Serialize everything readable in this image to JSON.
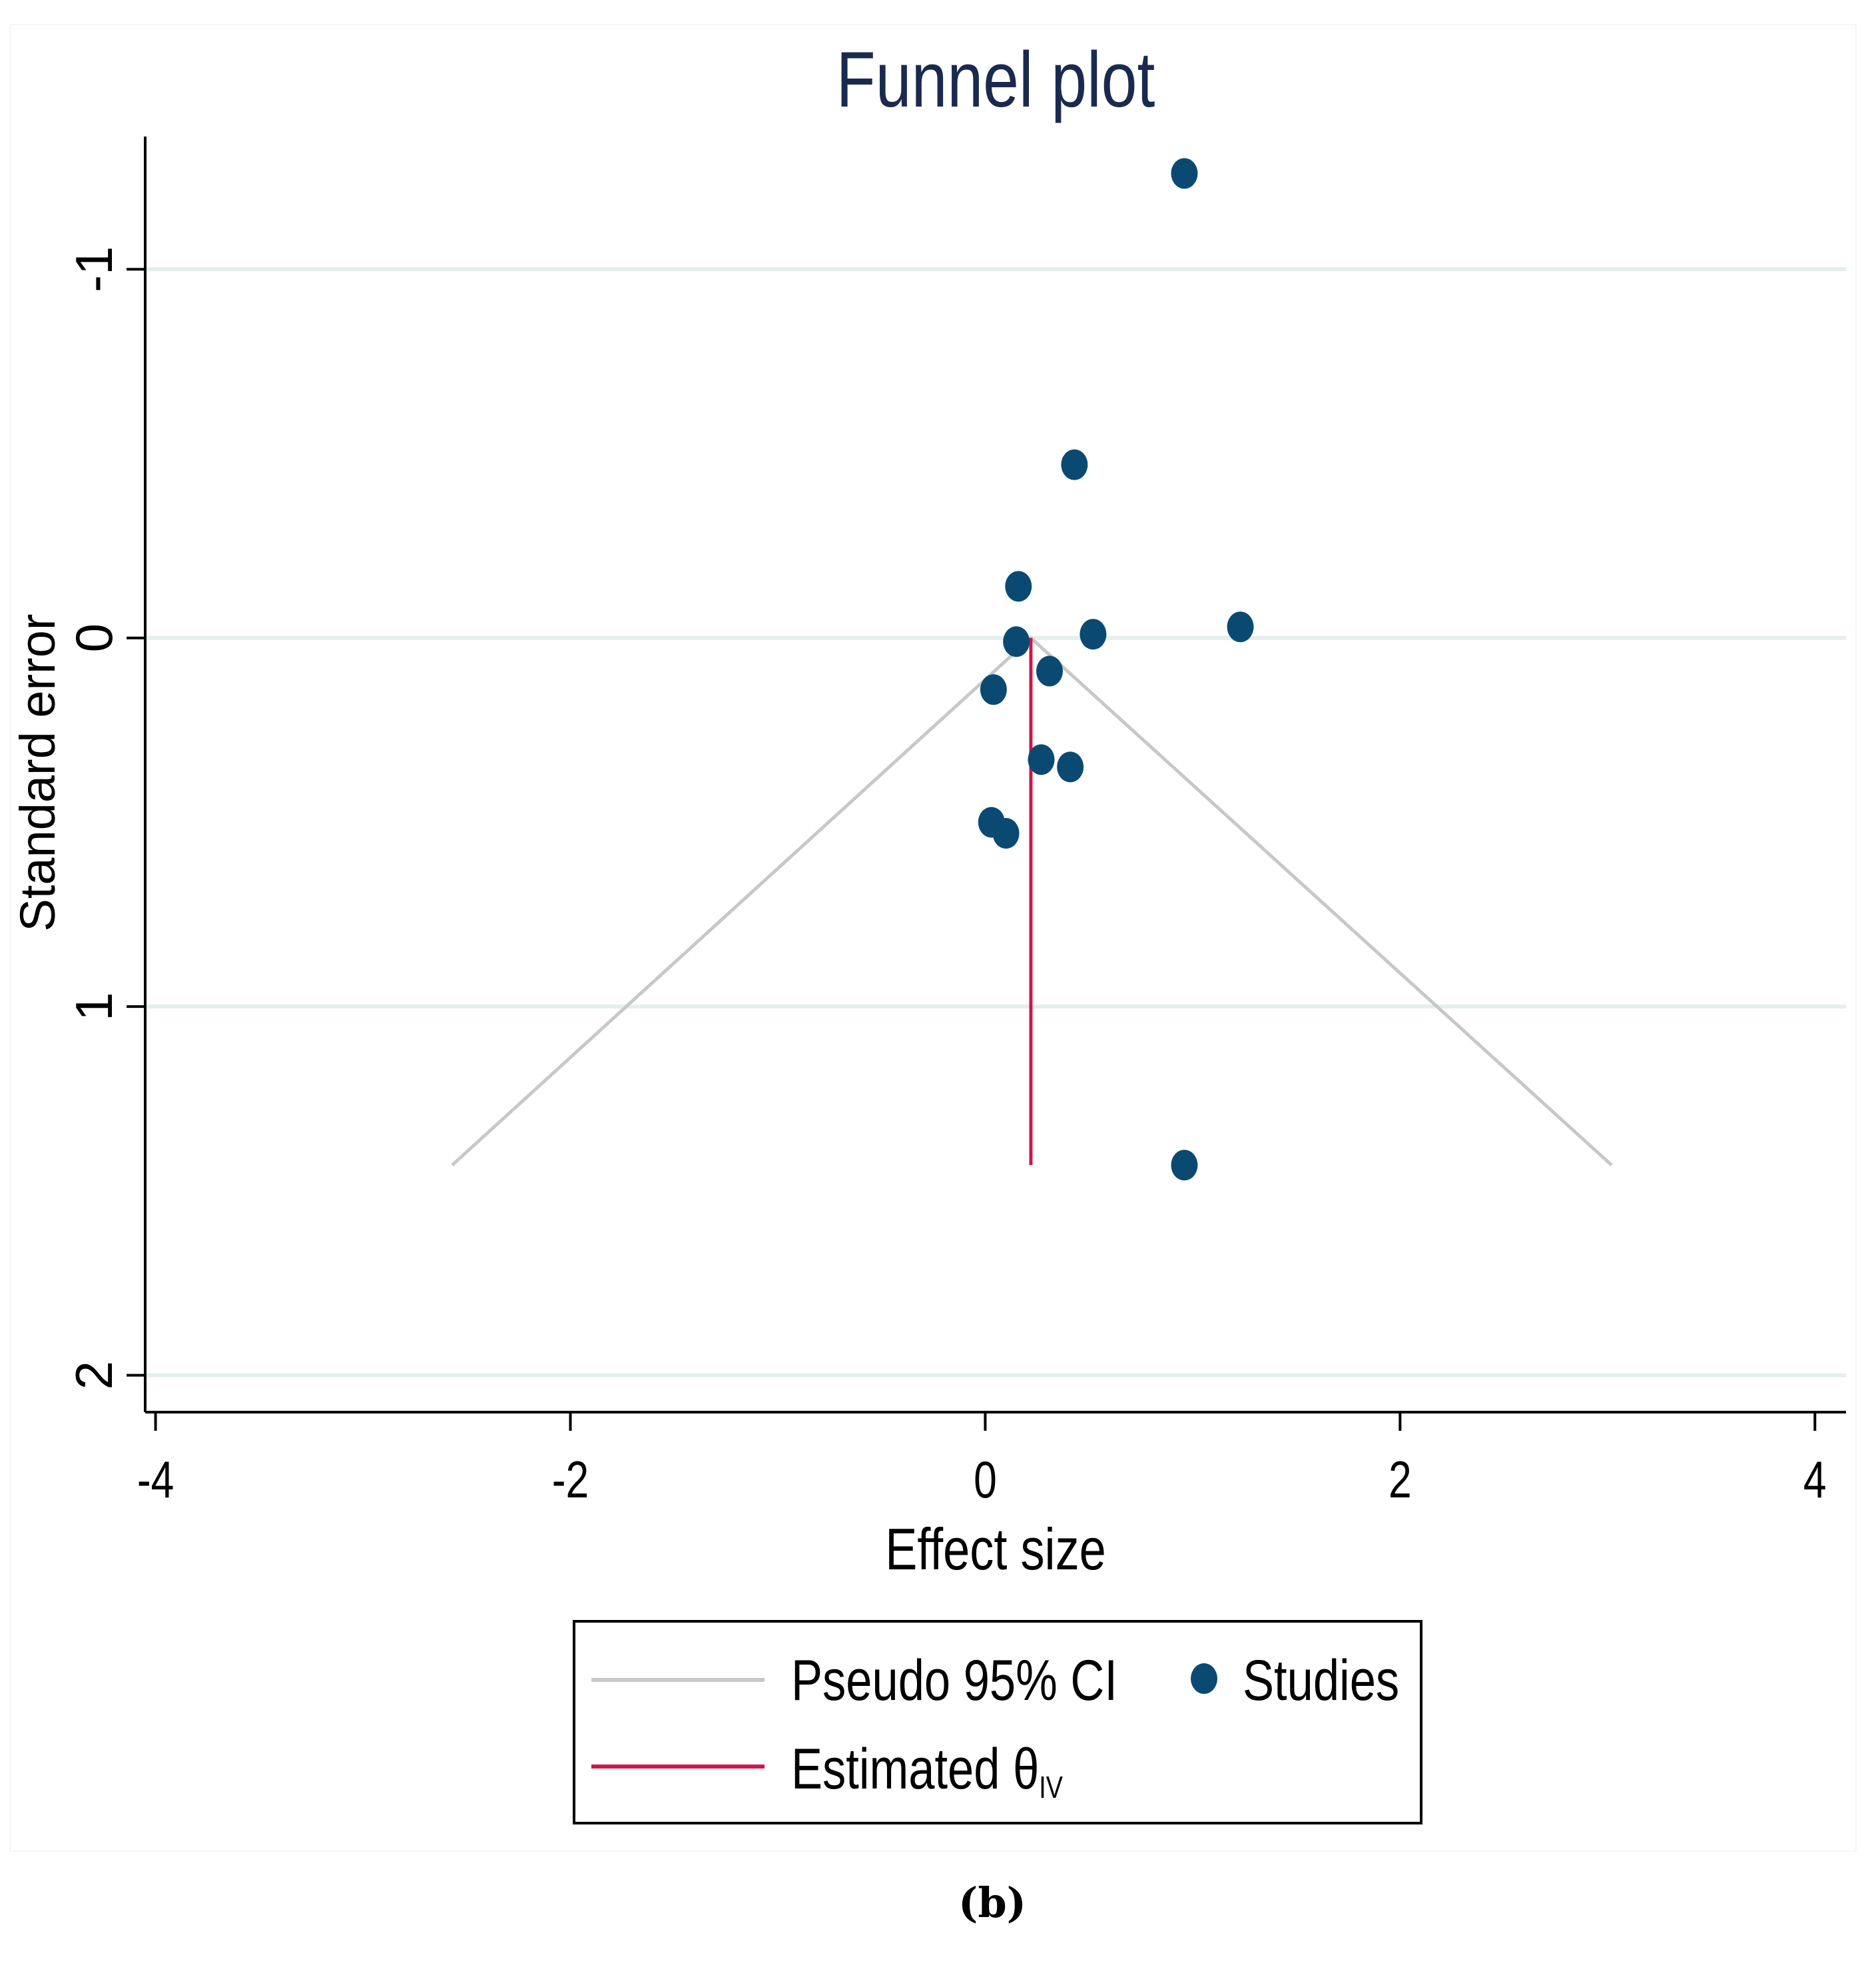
{
  "chart_data": {
    "type": "scatter",
    "title": "Funnel plot",
    "xlabel": "Effect size",
    "ylabel": "Standard error",
    "xlim": [
      -4.05,
      4.15
    ],
    "ylim": [
      -1.36,
      2.1
    ],
    "y_inverted": false,
    "x_ticks": [
      -4,
      -2,
      0,
      2,
      4
    ],
    "x_tick_labels": [
      "-4",
      "-2",
      "0",
      "2",
      "4"
    ],
    "y_ticks": [
      -1,
      0,
      1,
      2
    ],
    "y_tick_labels": [
      "-1",
      "0",
      "1",
      "2"
    ],
    "grid": true,
    "series": [
      {
        "name": "Studies",
        "kind": "scatter",
        "color": "#0a4a72",
        "points": [
          {
            "x": 0.96,
            "y": -1.26
          },
          {
            "x": 0.43,
            "y": -0.47
          },
          {
            "x": 0.16,
            "y": -0.14
          },
          {
            "x": 1.23,
            "y": -0.03
          },
          {
            "x": 0.15,
            "y": 0.01
          },
          {
            "x": 0.52,
            "y": -0.01
          },
          {
            "x": 0.31,
            "y": 0.09
          },
          {
            "x": 0.04,
            "y": 0.14
          },
          {
            "x": 0.27,
            "y": 0.33
          },
          {
            "x": 0.41,
            "y": 0.35
          },
          {
            "x": 0.03,
            "y": 0.5
          },
          {
            "x": 0.1,
            "y": 0.53
          },
          {
            "x": 0.96,
            "y": 1.43
          }
        ]
      },
      {
        "name": "Pseudo 95% CI",
        "kind": "line",
        "color": "#c8c8c8",
        "points": [
          {
            "x": -2.57,
            "y": 1.43
          },
          {
            "x": 0.22,
            "y": 0
          },
          {
            "x": 3.02,
            "y": 1.43
          }
        ]
      },
      {
        "name": "Estimated θIV",
        "kind": "line",
        "color": "#cc1848",
        "points": [
          {
            "x": 0.22,
            "y": 0
          },
          {
            "x": 0.22,
            "y": 1.43
          }
        ]
      }
    ],
    "legend": {
      "position": "bottom-center",
      "entries": [
        {
          "label": "Pseudo 95% CI",
          "kind": "line",
          "color": "#c8c8c8"
        },
        {
          "label": "Studies",
          "kind": "marker",
          "color": "#0a4a72"
        },
        {
          "label": "Estimated θ",
          "subscript": "IV",
          "kind": "line",
          "color": "#cc1848"
        }
      ]
    },
    "colors": {
      "title": "#1a2a4f",
      "grid": "#e6eeee",
      "axis": "#000000"
    }
  },
  "figure_label": "(b)"
}
